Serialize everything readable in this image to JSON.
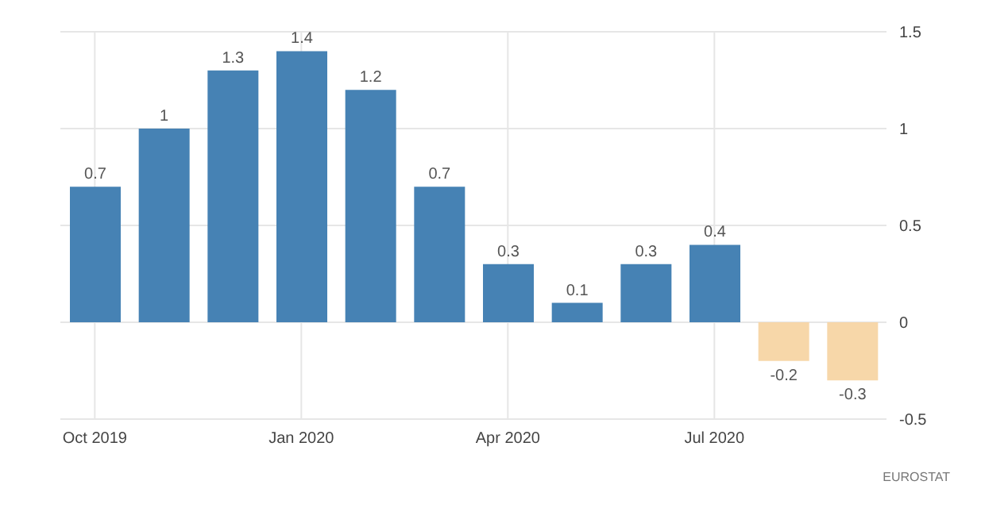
{
  "chart_data": {
    "type": "bar",
    "categories": [
      "Oct 2019",
      null,
      null,
      "Jan 2020",
      null,
      null,
      "Apr 2020",
      null,
      null,
      "Jul 2020",
      null,
      null
    ],
    "values": [
      0.7,
      1,
      1.3,
      1.4,
      1.2,
      0.7,
      0.3,
      0.1,
      0.3,
      0.4,
      -0.2,
      -0.3
    ],
    "colors": [
      "#4682b4",
      "#4682b4",
      "#4682b4",
      "#4682b4",
      "#4682b4",
      "#4682b4",
      "#4682b4",
      "#4682b4",
      "#4682b4",
      "#4682b4",
      "#f7d7a9",
      "#f7d7a9"
    ],
    "ylim": [
      -0.5,
      1.5
    ],
    "yticks": [
      -0.5,
      0,
      0.5,
      1,
      1.5
    ],
    "grid": true,
    "data_labels": true,
    "annotations": [
      "EUROSTAT"
    ]
  }
}
